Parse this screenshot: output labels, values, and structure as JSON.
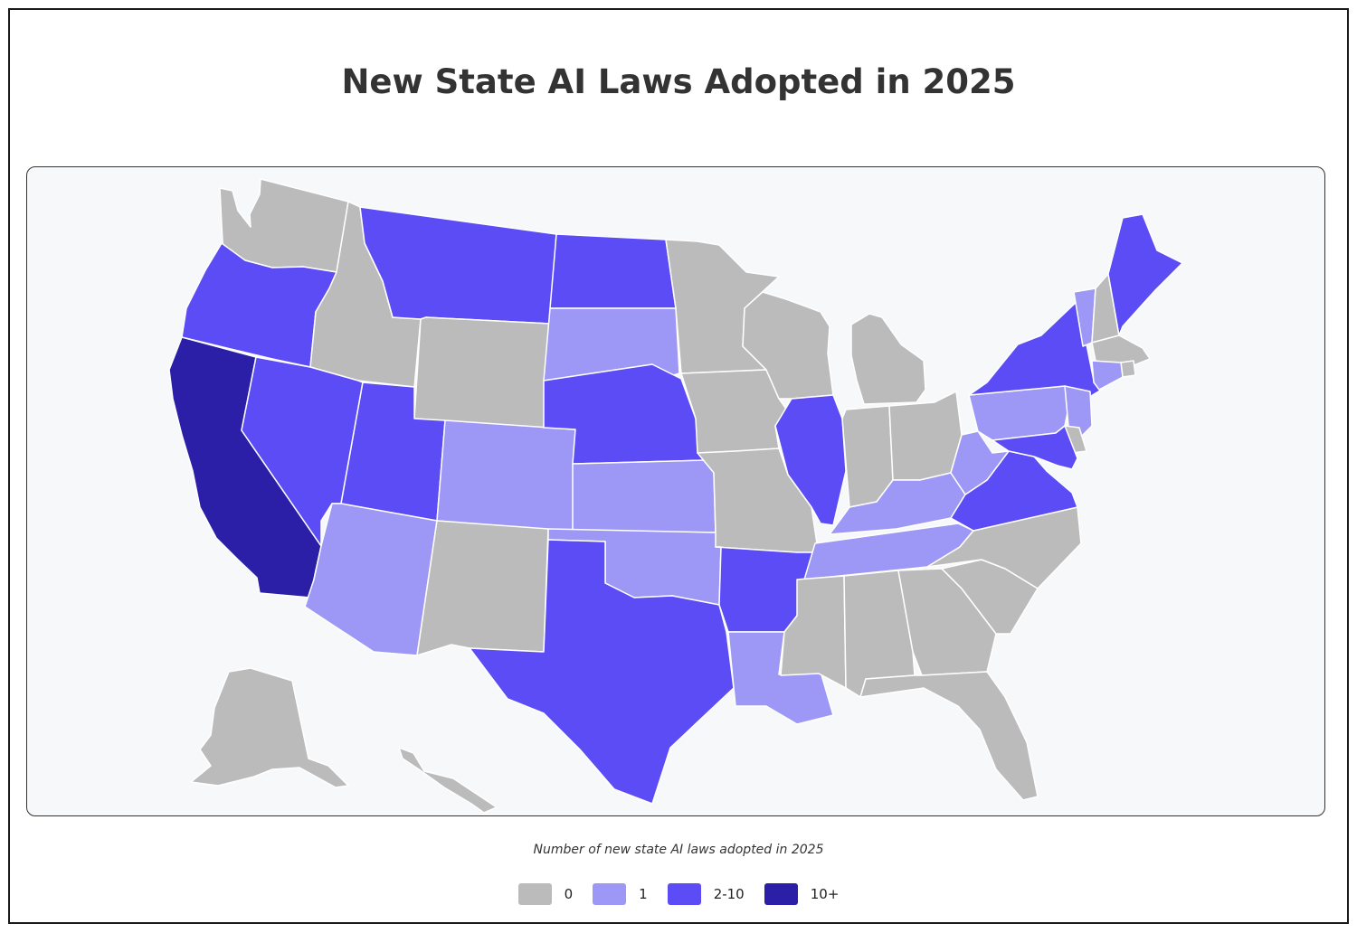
{
  "title": "New State AI Laws Adopted in 2025",
  "colors": {
    "0": "#bbbbbb",
    "1": "#9d98f5",
    "2-10": "#5b4cf5",
    "10+": "#2b1fa8",
    "background": "#f7f8fa",
    "border": "#ffffff"
  },
  "legend": {
    "caption": "Number of new state AI laws adopted in 2025",
    "items": [
      {
        "label": "0",
        "color": "#bbbbbb"
      },
      {
        "label": "1",
        "color": "#9d98f5"
      },
      {
        "label": "2-10",
        "color": "#5b4cf5"
      },
      {
        "label": "10+",
        "color": "#2b1fa8"
      }
    ]
  },
  "states": {
    "WA": "0",
    "OR": "2-10",
    "CA": "10+",
    "ID": "0",
    "NV": "2-10",
    "MT": "2-10",
    "WY": "0",
    "UT": "2-10",
    "AZ": "1",
    "CO": "1",
    "NM": "0",
    "ND": "2-10",
    "SD": "1",
    "NE": "2-10",
    "KS": "1",
    "OK": "1",
    "TX": "2-10",
    "MN": "0",
    "IA": "0",
    "MO": "0",
    "AR": "2-10",
    "LA": "1",
    "WI": "0",
    "IL": "2-10",
    "MI": "0",
    "IN": "0",
    "OH": "0",
    "KY": "1",
    "TN": "1",
    "MS": "0",
    "AL": "0",
    "GA": "0",
    "FL": "0",
    "SC": "0",
    "NC": "0",
    "VA": "2-10",
    "WV": "1",
    "PA": "1",
    "NY": "2-10",
    "VT": "1",
    "NH": "0",
    "ME": "2-10",
    "MA": "0",
    "RI": "0",
    "CT": "1",
    "NJ": "1",
    "DE": "0",
    "MD": "2-10",
    "AK": "0",
    "HI": "0"
  }
}
